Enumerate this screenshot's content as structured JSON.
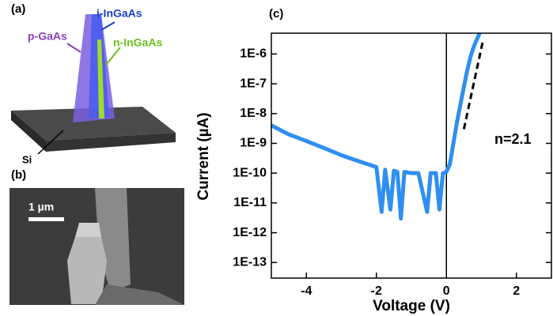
{
  "panels": [
    {
      "label": "(a)",
      "annotations": [
        "p-GaAs",
        "i-InGaAs",
        "n-InGaAs",
        "Si"
      ]
    },
    {
      "label": "(b)",
      "scale_bar": "1 µm"
    }
  ],
  "chart_data": {
    "type": "line",
    "panel_label": "(c)",
    "x_label": "Voltage (V)",
    "y_label": "Current (µA)",
    "x": [
      -5,
      -4.5,
      -4,
      -3.5,
      -3,
      -2.5,
      -2,
      -1.85,
      -1.75,
      -1.6,
      -1.5,
      -1.4,
      -1.3,
      -1.2,
      -1,
      -0.8,
      -0.55,
      -0.45,
      -0.3,
      -0.2,
      -0.1,
      0,
      0.1,
      0.2,
      0.3,
      0.4,
      0.5,
      0.6,
      0.7,
      0.8,
      0.95
    ],
    "values": [
      4e-09,
      2e-09,
      1.2e-09,
      7e-10,
      4e-10,
      2.5e-10,
      1.6e-10,
      5e-12,
      1.3e-10,
      6e-12,
      1.2e-10,
      1.1e-10,
      3e-12,
      1.1e-10,
      1e-10,
      1e-10,
      5e-12,
      1e-10,
      1e-10,
      6e-12,
      1e-10,
      1.1e-10,
      2e-10,
      1e-09,
      5e-09,
      2e-08,
      8e-08,
      3e-07,
      9e-07,
      2e-06,
      5e-06
    ],
    "color": "#2f8ff0",
    "fit": {
      "x": [
        0.5,
        1.05
      ],
      "values": [
        3e-09,
        3e-06
      ],
      "label": "n=2.1"
    },
    "log_y": true,
    "xlim": [
      -5,
      3
    ],
    "ylim": [
      3e-14,
      5e-06
    ],
    "xticks": [
      -4,
      -2,
      0,
      2
    ],
    "yticks": [
      {
        "value": 1e-13,
        "label": "1E-13"
      },
      {
        "value": 1e-12,
        "label": "1E-12"
      },
      {
        "value": 1e-11,
        "label": "1E-11"
      },
      {
        "value": 1e-10,
        "label": "1E-10"
      },
      {
        "value": 1e-09,
        "label": "1E-9"
      },
      {
        "value": 1e-08,
        "label": "1E-8"
      },
      {
        "value": 1e-07,
        "label": "1E-7"
      },
      {
        "value": 1e-06,
        "label": "1E-6"
      }
    ]
  }
}
